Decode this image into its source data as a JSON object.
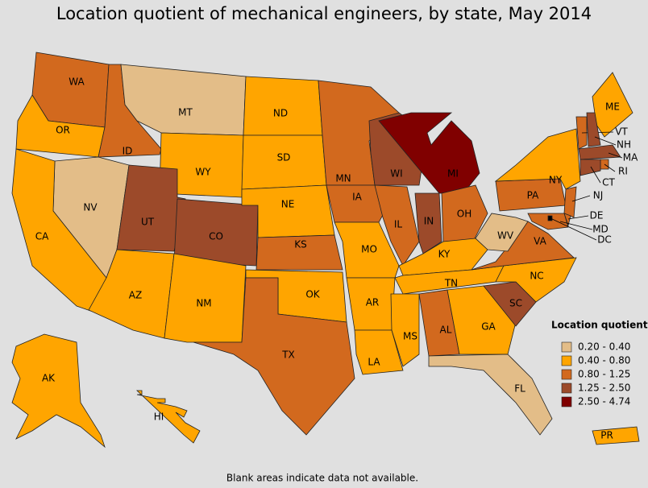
{
  "title": "Location quotient of mechanical engineers, by state, May 2014",
  "legend": {
    "title": "Location quotient",
    "items": [
      {
        "label": "0.20 - 0.40",
        "color": "#e3bd88"
      },
      {
        "label": "0.40 - 0.80",
        "color": "#ffa500"
      },
      {
        "label": "0.80 - 1.25",
        "color": "#d2691e"
      },
      {
        "label": "1.25 - 2.50",
        "color": "#9c4a2a"
      },
      {
        "label": "2.50 - 4.74",
        "color": "#800000"
      }
    ]
  },
  "states": [
    {
      "label": "WA",
      "color": "#d2691e"
    },
    {
      "label": "OR",
      "color": "#ffa500"
    },
    {
      "label": "ID",
      "color": "#d2691e"
    },
    {
      "label": "MT",
      "color": "#e3bd88"
    },
    {
      "label": "WY",
      "color": "#ffa500"
    },
    {
      "label": "NV",
      "color": "#e3bd88"
    },
    {
      "label": "CA",
      "color": "#ffa500"
    },
    {
      "label": "UT",
      "color": "#9c4a2a"
    },
    {
      "label": "CO",
      "color": "#9c4a2a"
    },
    {
      "label": "AZ",
      "color": "#ffa500"
    },
    {
      "label": "NM",
      "color": "#ffa500"
    },
    {
      "label": "ND",
      "color": "#ffa500"
    },
    {
      "label": "SD",
      "color": "#ffa500"
    },
    {
      "label": "NE",
      "color": "#ffa500"
    },
    {
      "label": "KS",
      "color": "#d2691e"
    },
    {
      "label": "OK",
      "color": "#ffa500"
    },
    {
      "label": "TX",
      "color": "#d2691e"
    },
    {
      "label": "MN",
      "color": "#d2691e"
    },
    {
      "label": "WI",
      "color": "#9c4a2a"
    },
    {
      "label": "IA",
      "color": "#d2691e"
    },
    {
      "label": "MO",
      "color": "#ffa500"
    },
    {
      "label": "AR",
      "color": "#ffa500"
    },
    {
      "label": "LA",
      "color": "#ffa500"
    },
    {
      "label": "IL",
      "color": "#d2691e"
    },
    {
      "label": "IN",
      "color": "#9c4a2a"
    },
    {
      "label": "MI",
      "color": "#800000"
    },
    {
      "label": "OH",
      "color": "#d2691e"
    },
    {
      "label": "KY",
      "color": "#ffa500"
    },
    {
      "label": "TN",
      "color": "#ffa500"
    },
    {
      "label": "MS",
      "color": "#ffa500"
    },
    {
      "label": "AL",
      "color": "#d2691e"
    },
    {
      "label": "GA",
      "color": "#ffa500"
    },
    {
      "label": "FL",
      "color": "#e3bd88"
    },
    {
      "label": "SC",
      "color": "#9c4a2a"
    },
    {
      "label": "NC",
      "color": "#ffa500"
    },
    {
      "label": "VA",
      "color": "#d2691e"
    },
    {
      "label": "WV",
      "color": "#e3bd88"
    },
    {
      "label": "PA",
      "color": "#d2691e"
    },
    {
      "label": "NY",
      "color": "#ffa500"
    },
    {
      "label": "NJ",
      "color": "#d2691e"
    },
    {
      "label": "DE",
      "color": "#d2691e"
    },
    {
      "label": "MD",
      "color": "#d2691e"
    },
    {
      "label": "DC",
      "color": "#000000"
    },
    {
      "label": "ME",
      "color": "#ffa500"
    },
    {
      "label": "VT",
      "color": "#d2691e"
    },
    {
      "label": "NH",
      "color": "#9c4a2a"
    },
    {
      "label": "MA",
      "color": "#9c4a2a"
    },
    {
      "label": "RI",
      "color": "#d2691e"
    },
    {
      "label": "CT",
      "color": "#9c4a2a"
    },
    {
      "label": "AK",
      "color": "#ffa500"
    },
    {
      "label": "HI",
      "color": "#ffa500"
    },
    {
      "label": "PR",
      "color": "#ffa500"
    }
  ],
  "footnote": "Blank areas indicate data not available."
}
